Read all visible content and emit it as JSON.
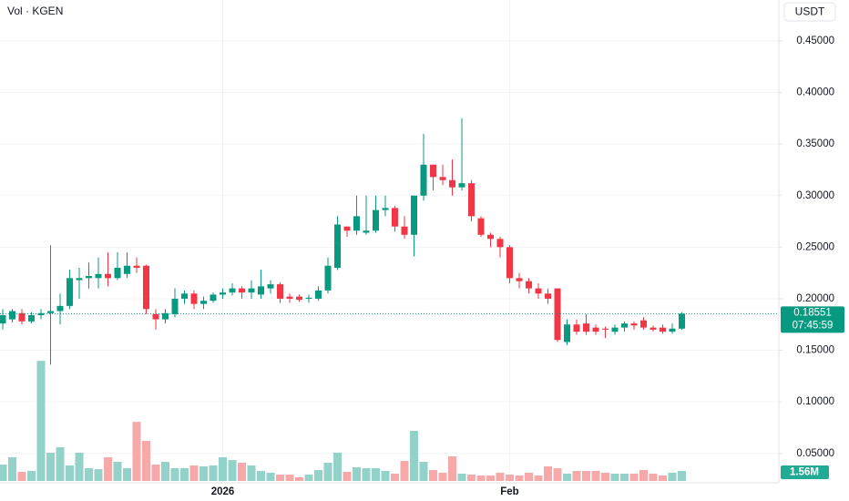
{
  "chart_data": {
    "type": "candlestick",
    "title": "Vol · KGEN",
    "currency": "USDT",
    "open": [
      0.176,
      0.18,
      0.186,
      0.178,
      0.184,
      0.186,
      0.188,
      0.193,
      0.218,
      0.22,
      0.22,
      0.224,
      0.22,
      0.224,
      0.232,
      0.232,
      0.185,
      0.18,
      0.185,
      0.2,
      0.205,
      0.195,
      0.198,
      0.204,
      0.206,
      0.21,
      0.206,
      0.204,
      0.21,
      0.214,
      0.202,
      0.202,
      0.2,
      0.2,
      0.208,
      0.23,
      0.27,
      0.266,
      0.264,
      0.266,
      0.286,
      0.288,
      0.27,
      0.262,
      0.3,
      0.33,
      0.318,
      0.315,
      0.308,
      0.312,
      0.278,
      0.262,
      0.258,
      0.25,
      0.22,
      0.217,
      0.21,
      0.205,
      0.21,
      0.158,
      0.175,
      0.176,
      0.172,
      0.171,
      0.168,
      0.172,
      0.176,
      0.179,
      0.172,
      0.172,
      0.168,
      0.171
    ],
    "high": [
      0.19,
      0.19,
      0.19,
      0.187,
      0.19,
      0.252,
      0.205,
      0.228,
      0.23,
      0.235,
      0.24,
      0.245,
      0.245,
      0.245,
      0.24,
      0.233,
      0.19,
      0.19,
      0.21,
      0.208,
      0.208,
      0.202,
      0.206,
      0.21,
      0.215,
      0.212,
      0.218,
      0.228,
      0.218,
      0.216,
      0.205,
      0.204,
      0.204,
      0.212,
      0.24,
      0.28,
      0.27,
      0.3,
      0.3,
      0.3,
      0.3,
      0.29,
      0.28,
      0.3,
      0.36,
      0.33,
      0.33,
      0.335,
      0.375,
      0.315,
      0.28,
      0.264,
      0.26,
      0.252,
      0.225,
      0.22,
      0.215,
      0.21,
      0.21,
      0.18,
      0.18,
      0.185,
      0.175,
      0.173,
      0.175,
      0.178,
      0.178,
      0.182,
      0.174,
      0.175,
      0.176,
      0.187
    ],
    "low": [
      0.17,
      0.177,
      0.175,
      0.176,
      0.18,
      0.136,
      0.175,
      0.19,
      0.2,
      0.21,
      0.21,
      0.212,
      0.218,
      0.22,
      0.225,
      0.185,
      0.17,
      0.176,
      0.182,
      0.195,
      0.19,
      0.19,
      0.196,
      0.2,
      0.203,
      0.2,
      0.2,
      0.2,
      0.205,
      0.196,
      0.196,
      0.197,
      0.196,
      0.198,
      0.205,
      0.228,
      0.26,
      0.262,
      0.262,
      0.264,
      0.28,
      0.265,
      0.258,
      0.241,
      0.295,
      0.305,
      0.31,
      0.3,
      0.305,
      0.275,
      0.26,
      0.25,
      0.24,
      0.215,
      0.21,
      0.205,
      0.2,
      0.195,
      0.158,
      0.155,
      0.165,
      0.165,
      0.165,
      0.162,
      0.165,
      0.168,
      0.17,
      0.17,
      0.168,
      0.166,
      0.166,
      0.17
    ],
    "close": [
      0.184,
      0.188,
      0.178,
      0.184,
      0.186,
      0.188,
      0.193,
      0.22,
      0.22,
      0.222,
      0.224,
      0.22,
      0.23,
      0.232,
      0.23,
      0.19,
      0.18,
      0.186,
      0.2,
      0.205,
      0.195,
      0.198,
      0.204,
      0.206,
      0.21,
      0.206,
      0.21,
      0.212,
      0.214,
      0.2,
      0.2,
      0.199,
      0.201,
      0.208,
      0.232,
      0.272,
      0.266,
      0.28,
      0.266,
      0.286,
      0.288,
      0.27,
      0.262,
      0.3,
      0.33,
      0.318,
      0.315,
      0.308,
      0.312,
      0.28,
      0.262,
      0.258,
      0.25,
      0.22,
      0.217,
      0.21,
      0.205,
      0.2,
      0.16,
      0.175,
      0.168,
      0.168,
      0.168,
      0.17,
      0.172,
      0.176,
      0.174,
      0.172,
      0.17,
      0.168,
      0.171,
      0.18551
    ],
    "volume": [
      2.55,
      3.69,
      1.42,
      1.56,
      18.7,
      4.4,
      5.25,
      2.41,
      4.4,
      1.99,
      1.84,
      3.69,
      2.98,
      1.99,
      9.2,
      6.24,
      2.55,
      2.98,
      1.99,
      1.99,
      2.41,
      2.27,
      2.41,
      3.69,
      3.26,
      2.84,
      2.41,
      1.56,
      1.28,
      0.99,
      0.99,
      0.57,
      0.99,
      1.7,
      2.84,
      4.4,
      1.42,
      2.13,
      1.99,
      1.99,
      1.56,
      1.13,
      3.12,
      7.8,
      2.98,
      1.7,
      1.28,
      3.83,
      1.13,
      0.99,
      0.85,
      0.85,
      1.28,
      0.99,
      0.85,
      1.28,
      0.85,
      2.27,
      1.99,
      1.13,
      1.56,
      1.56,
      1.56,
      1.28,
      1.13,
      1.13,
      1.13,
      1.7,
      1.13,
      0.85,
      1.28,
      1.56
    ],
    "volume_label": "1.56M",
    "countdown": "07:45:59",
    "up_color": "#089981",
    "down_color": "#f23645",
    "volume_up_color": "#92d2c9",
    "volume_down_color": "#f7a8a9",
    "ylim": [
      0.0215,
      0.4897
    ],
    "yticks": [
      {
        "value": 0.05,
        "label": "0.05000"
      },
      {
        "value": 0.1,
        "label": "0.10000"
      },
      {
        "value": 0.15,
        "label": "0.15000"
      },
      {
        "value": 0.2,
        "label": "0.20000"
      },
      {
        "value": 0.25,
        "label": "0.25000"
      },
      {
        "value": 0.3,
        "label": "0.30000"
      },
      {
        "value": 0.35,
        "label": "0.35000"
      },
      {
        "value": 0.4,
        "label": "0.40000"
      },
      {
        "value": 0.45,
        "label": "0.45000"
      }
    ],
    "volume_lim": [
      0,
      74.9
    ],
    "xticks": [
      {
        "value": 23,
        "label": "2026"
      },
      {
        "value": 53,
        "label": "Feb"
      }
    ],
    "grid": true
  }
}
